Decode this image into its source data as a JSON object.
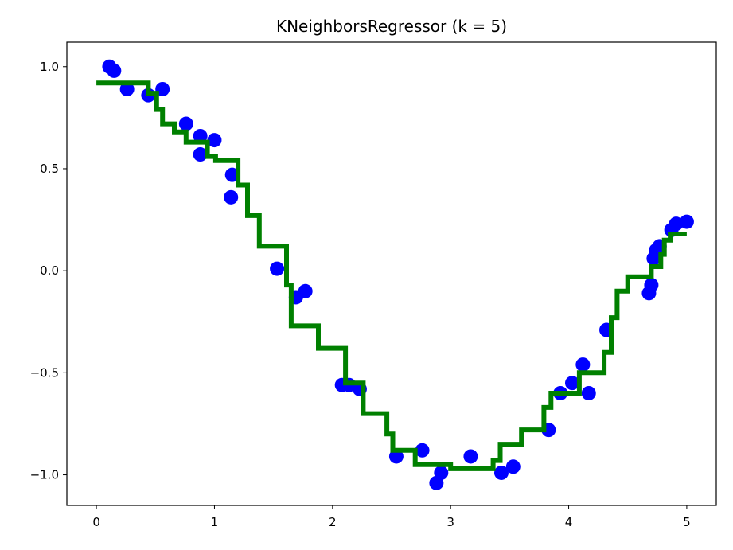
{
  "chart_data": {
    "type": "scatter",
    "title": "KNeighborsRegressor (k = 5)",
    "xlim": [
      -0.25,
      5.25
    ],
    "ylim": [
      -1.15,
      1.12
    ],
    "grid": false,
    "x_ticks": [
      0,
      1,
      2,
      3,
      4,
      5
    ],
    "x_tick_labels": [
      "0",
      "1",
      "2",
      "3",
      "4",
      "5"
    ],
    "y_ticks": [
      1.0,
      0.5,
      0.0,
      -0.5,
      -1.0
    ],
    "y_tick_labels": [
      "1.0",
      "0.5",
      "0.0",
      "−0.5",
      "−1.0"
    ],
    "series": [
      {
        "kind": "scatter",
        "color": "#0000ff",
        "points": [
          [
            0.11,
            1.0
          ],
          [
            0.15,
            0.98
          ],
          [
            0.26,
            0.89
          ],
          [
            0.44,
            0.86
          ],
          [
            0.56,
            0.89
          ],
          [
            0.76,
            0.72
          ],
          [
            0.88,
            0.66
          ],
          [
            0.88,
            0.57
          ],
          [
            1.0,
            0.64
          ],
          [
            1.15,
            0.47
          ],
          [
            1.14,
            0.36
          ],
          [
            1.53,
            0.01
          ],
          [
            1.69,
            -0.13
          ],
          [
            1.77,
            -0.1
          ],
          [
            2.08,
            -0.56
          ],
          [
            2.14,
            -0.56
          ],
          [
            2.23,
            -0.58
          ],
          [
            2.54,
            -0.91
          ],
          [
            2.76,
            -0.88
          ],
          [
            2.88,
            -1.04
          ],
          [
            2.92,
            -0.99
          ],
          [
            3.17,
            -0.91
          ],
          [
            3.43,
            -0.99
          ],
          [
            3.53,
            -0.96
          ],
          [
            3.83,
            -0.78
          ],
          [
            3.93,
            -0.6
          ],
          [
            4.03,
            -0.55
          ],
          [
            4.12,
            -0.46
          ],
          [
            4.17,
            -0.6
          ],
          [
            4.32,
            -0.29
          ],
          [
            4.68,
            -0.11
          ],
          [
            4.7,
            -0.07
          ],
          [
            4.72,
            0.06
          ],
          [
            4.74,
            0.1
          ],
          [
            4.77,
            0.12
          ],
          [
            4.87,
            0.2
          ],
          [
            4.91,
            0.23
          ],
          [
            5.0,
            0.24
          ]
        ]
      },
      {
        "kind": "step-line",
        "color": "#008000",
        "points": [
          [
            0.0,
            0.92
          ],
          [
            0.44,
            0.92
          ],
          [
            0.44,
            0.87
          ],
          [
            0.51,
            0.87
          ],
          [
            0.51,
            0.79
          ],
          [
            0.56,
            0.79
          ],
          [
            0.56,
            0.72
          ],
          [
            0.66,
            0.72
          ],
          [
            0.66,
            0.68
          ],
          [
            0.76,
            0.68
          ],
          [
            0.76,
            0.63
          ],
          [
            0.94,
            0.63
          ],
          [
            0.94,
            0.56
          ],
          [
            1.01,
            0.56
          ],
          [
            1.01,
            0.54
          ],
          [
            1.2,
            0.54
          ],
          [
            1.2,
            0.42
          ],
          [
            1.28,
            0.42
          ],
          [
            1.28,
            0.27
          ],
          [
            1.38,
            0.27
          ],
          [
            1.38,
            0.12
          ],
          [
            1.61,
            0.12
          ],
          [
            1.61,
            -0.07
          ],
          [
            1.65,
            -0.07
          ],
          [
            1.65,
            -0.27
          ],
          [
            1.88,
            -0.27
          ],
          [
            1.88,
            -0.38
          ],
          [
            2.11,
            -0.38
          ],
          [
            2.11,
            -0.55
          ],
          [
            2.26,
            -0.55
          ],
          [
            2.26,
            -0.7
          ],
          [
            2.46,
            -0.7
          ],
          [
            2.46,
            -0.8
          ],
          [
            2.51,
            -0.8
          ],
          [
            2.51,
            -0.88
          ],
          [
            2.7,
            -0.88
          ],
          [
            2.7,
            -0.95
          ],
          [
            3.0,
            -0.95
          ],
          [
            3.0,
            -0.97
          ],
          [
            3.36,
            -0.97
          ],
          [
            3.36,
            -0.93
          ],
          [
            3.42,
            -0.93
          ],
          [
            3.42,
            -0.85
          ],
          [
            3.6,
            -0.85
          ],
          [
            3.6,
            -0.78
          ],
          [
            3.79,
            -0.78
          ],
          [
            3.79,
            -0.67
          ],
          [
            3.85,
            -0.67
          ],
          [
            3.85,
            -0.6
          ],
          [
            4.09,
            -0.6
          ],
          [
            4.09,
            -0.5
          ],
          [
            4.3,
            -0.5
          ],
          [
            4.3,
            -0.4
          ],
          [
            4.36,
            -0.4
          ],
          [
            4.36,
            -0.23
          ],
          [
            4.41,
            -0.23
          ],
          [
            4.41,
            -0.1
          ],
          [
            4.5,
            -0.1
          ],
          [
            4.5,
            -0.03
          ],
          [
            4.7,
            -0.03
          ],
          [
            4.7,
            0.02
          ],
          [
            4.78,
            0.02
          ],
          [
            4.78,
            0.08
          ],
          [
            4.81,
            0.08
          ],
          [
            4.81,
            0.15
          ],
          [
            4.86,
            0.15
          ],
          [
            4.86,
            0.18
          ],
          [
            5.0,
            0.18
          ]
        ]
      }
    ]
  }
}
